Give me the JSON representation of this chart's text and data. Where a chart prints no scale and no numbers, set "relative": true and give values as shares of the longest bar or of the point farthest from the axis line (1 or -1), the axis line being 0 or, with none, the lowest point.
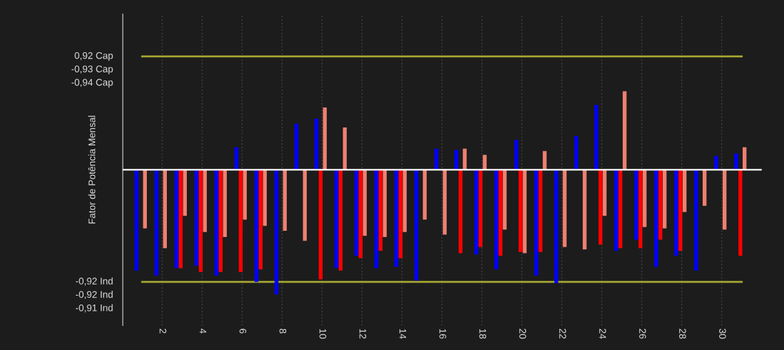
{
  "chart_data": {
    "type": "bar",
    "ylabel": "Fator de Potência Mensal",
    "relative": true,
    "categories": [
      null,
      "2",
      null,
      "4",
      null,
      "6",
      null,
      "8",
      null,
      "10",
      null,
      "12",
      null,
      "14",
      null,
      "16",
      null,
      "18",
      null,
      "20",
      null,
      "22",
      null,
      "24",
      null,
      "26",
      null,
      "28",
      null,
      "30",
      null
    ],
    "series": [
      {
        "color": "#0000ff",
        "values": [
          -0.81,
          -0.85,
          -0.79,
          -0.77,
          -0.85,
          0.18,
          -0.9,
          -1,
          0.37,
          0.41,
          -0.79,
          -0.69,
          -0.79,
          -0.78,
          -0.89,
          0.17,
          0.16,
          -0.68,
          -0.8,
          0.24,
          -0.85,
          -0.91,
          0.27,
          0.52,
          -0.65,
          -0.56,
          -0.78,
          -0.69,
          -0.81,
          0.11,
          0.13
        ]
      },
      {
        "color": "#ff0000",
        "values": [
          null,
          null,
          -0.79,
          -0.82,
          -0.82,
          -0.82,
          -0.8,
          null,
          null,
          -0.88,
          -0.81,
          -0.71,
          -0.65,
          -0.71,
          null,
          null,
          -0.67,
          -0.62,
          -0.69,
          -0.66,
          -0.66,
          null,
          null,
          -0.6,
          -0.63,
          -0.63,
          -0.56,
          -0.65,
          null,
          null,
          -0.69
        ]
      },
      {
        "color": "#f08070",
        "values": [
          -0.47,
          -0.63,
          -0.37,
          -0.5,
          -0.54,
          -0.4,
          -0.45,
          -0.49,
          -0.57,
          0.5,
          0.34,
          -0.53,
          -0.54,
          -0.5,
          -0.4,
          -0.52,
          0.17,
          0.12,
          -0.48,
          -0.67,
          0.15,
          -0.62,
          -0.64,
          -0.37,
          0.63,
          -0.46,
          -0.47,
          -0.34,
          -0.29,
          -0.48,
          0.18
        ]
      }
    ],
    "annotations": [
      "0,92 Cap",
      "-0,93 Cap",
      "-0,94 Cap",
      "-0,92 Ind",
      "-0,92 Ind",
      "-0,91 Ind"
    ],
    "ref_lines": [
      {
        "axis": "y",
        "value": 0.91,
        "color": "#a8a832"
      },
      {
        "axis": "y",
        "value": -0.9,
        "color": "#a8a832"
      }
    ],
    "grid": "x",
    "legend": false
  }
}
